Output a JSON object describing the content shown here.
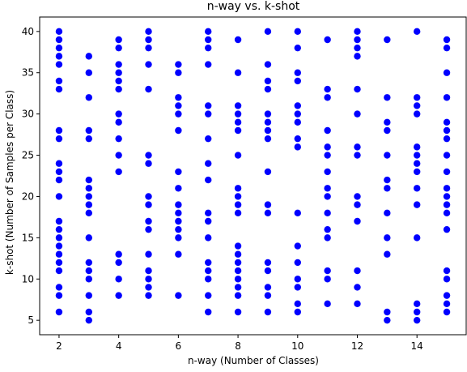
{
  "chart_data": {
    "type": "scatter",
    "title": "n-way vs. k-shot",
    "xlabel": "n-way (Number of Classes)",
    "ylabel": "k-shot (Number of Samples per Class)",
    "xlim": [
      1.35,
      15.65
    ],
    "ylim": [
      3.25,
      41.75
    ],
    "xticks": [
      2,
      4,
      6,
      8,
      10,
      12,
      14
    ],
    "yticks": [
      5,
      10,
      15,
      20,
      25,
      30,
      35,
      40
    ],
    "grid": false,
    "marker_color": "#0000ff",
    "points": [
      [
        2,
        40
      ],
      [
        2,
        39
      ],
      [
        2,
        38
      ],
      [
        2,
        37
      ],
      [
        2,
        36
      ],
      [
        2,
        34
      ],
      [
        2,
        33
      ],
      [
        2,
        28
      ],
      [
        2,
        27
      ],
      [
        2,
        24
      ],
      [
        2,
        23
      ],
      [
        2,
        22
      ],
      [
        2,
        20
      ],
      [
        2,
        17
      ],
      [
        2,
        16
      ],
      [
        2,
        15
      ],
      [
        2,
        14
      ],
      [
        2,
        13
      ],
      [
        2,
        12
      ],
      [
        2,
        11
      ],
      [
        2,
        9
      ],
      [
        2,
        8
      ],
      [
        2,
        6
      ],
      [
        3,
        37
      ],
      [
        3,
        35
      ],
      [
        3,
        32
      ],
      [
        3,
        28
      ],
      [
        3,
        27
      ],
      [
        3,
        22
      ],
      [
        3,
        21
      ],
      [
        3,
        20
      ],
      [
        3,
        19
      ],
      [
        3,
        18
      ],
      [
        3,
        15
      ],
      [
        3,
        12
      ],
      [
        3,
        11
      ],
      [
        3,
        10
      ],
      [
        3,
        8
      ],
      [
        3,
        6
      ],
      [
        3,
        5
      ],
      [
        4,
        39
      ],
      [
        4,
        38
      ],
      [
        4,
        36
      ],
      [
        4,
        35
      ],
      [
        4,
        34
      ],
      [
        4,
        33
      ],
      [
        4,
        30
      ],
      [
        4,
        29
      ],
      [
        4,
        27
      ],
      [
        4,
        25
      ],
      [
        4,
        23
      ],
      [
        4,
        13
      ],
      [
        4,
        12
      ],
      [
        4,
        10
      ],
      [
        4,
        8
      ],
      [
        5,
        40
      ],
      [
        5,
        39
      ],
      [
        5,
        38
      ],
      [
        5,
        36
      ],
      [
        5,
        33
      ],
      [
        5,
        25
      ],
      [
        5,
        24
      ],
      [
        5,
        20
      ],
      [
        5,
        19
      ],
      [
        5,
        17
      ],
      [
        5,
        16
      ],
      [
        5,
        13
      ],
      [
        5,
        11
      ],
      [
        5,
        10
      ],
      [
        5,
        9
      ],
      [
        5,
        8
      ],
      [
        6,
        36
      ],
      [
        6,
        35
      ],
      [
        6,
        32
      ],
      [
        6,
        31
      ],
      [
        6,
        30
      ],
      [
        6,
        28
      ],
      [
        6,
        23
      ],
      [
        6,
        21
      ],
      [
        6,
        19
      ],
      [
        6,
        18
      ],
      [
        6,
        17
      ],
      [
        6,
        16
      ],
      [
        6,
        15
      ],
      [
        6,
        13
      ],
      [
        6,
        8
      ],
      [
        7,
        40
      ],
      [
        7,
        39
      ],
      [
        7,
        38
      ],
      [
        7,
        36
      ],
      [
        7,
        31
      ],
      [
        7,
        30
      ],
      [
        7,
        27
      ],
      [
        7,
        24
      ],
      [
        7,
        22
      ],
      [
        7,
        18
      ],
      [
        7,
        17
      ],
      [
        7,
        15
      ],
      [
        7,
        12
      ],
      [
        7,
        11
      ],
      [
        7,
        10
      ],
      [
        7,
        8
      ],
      [
        7,
        6
      ],
      [
        8,
        39
      ],
      [
        8,
        35
      ],
      [
        8,
        31
      ],
      [
        8,
        30
      ],
      [
        8,
        29
      ],
      [
        8,
        28
      ],
      [
        8,
        25
      ],
      [
        8,
        21
      ],
      [
        8,
        20
      ],
      [
        8,
        19
      ],
      [
        8,
        18
      ],
      [
        8,
        14
      ],
      [
        8,
        13
      ],
      [
        8,
        12
      ],
      [
        8,
        11
      ],
      [
        8,
        10
      ],
      [
        8,
        9
      ],
      [
        8,
        8
      ],
      [
        8,
        6
      ],
      [
        9,
        40
      ],
      [
        9,
        36
      ],
      [
        9,
        34
      ],
      [
        9,
        33
      ],
      [
        9,
        30
      ],
      [
        9,
        29
      ],
      [
        9,
        28
      ],
      [
        9,
        27
      ],
      [
        9,
        23
      ],
      [
        9,
        19
      ],
      [
        9,
        18
      ],
      [
        9,
        12
      ],
      [
        9,
        11
      ],
      [
        9,
        9
      ],
      [
        9,
        8
      ],
      [
        9,
        6
      ],
      [
        10,
        40
      ],
      [
        10,
        38
      ],
      [
        10,
        35
      ],
      [
        10,
        34
      ],
      [
        10,
        31
      ],
      [
        10,
        30
      ],
      [
        10,
        29
      ],
      [
        10,
        27
      ],
      [
        10,
        26
      ],
      [
        10,
        18
      ],
      [
        10,
        14
      ],
      [
        10,
        12
      ],
      [
        10,
        10
      ],
      [
        10,
        9
      ],
      [
        10,
        7
      ],
      [
        10,
        6
      ],
      [
        11,
        39
      ],
      [
        11,
        33
      ],
      [
        11,
        32
      ],
      [
        11,
        28
      ],
      [
        11,
        26
      ],
      [
        11,
        25
      ],
      [
        11,
        23
      ],
      [
        11,
        21
      ],
      [
        11,
        20
      ],
      [
        11,
        18
      ],
      [
        11,
        16
      ],
      [
        11,
        15
      ],
      [
        11,
        11
      ],
      [
        11,
        10
      ],
      [
        11,
        7
      ],
      [
        12,
        40
      ],
      [
        12,
        39
      ],
      [
        12,
        38
      ],
      [
        12,
        37
      ],
      [
        12,
        33
      ],
      [
        12,
        30
      ],
      [
        12,
        26
      ],
      [
        12,
        25
      ],
      [
        12,
        20
      ],
      [
        12,
        19
      ],
      [
        12,
        17
      ],
      [
        12,
        11
      ],
      [
        12,
        9
      ],
      [
        12,
        7
      ],
      [
        13,
        39
      ],
      [
        13,
        32
      ],
      [
        13,
        29
      ],
      [
        13,
        28
      ],
      [
        13,
        25
      ],
      [
        13,
        22
      ],
      [
        13,
        21
      ],
      [
        13,
        18
      ],
      [
        13,
        15
      ],
      [
        13,
        13
      ],
      [
        13,
        6
      ],
      [
        13,
        5
      ],
      [
        14,
        40
      ],
      [
        14,
        32
      ],
      [
        14,
        31
      ],
      [
        14,
        30
      ],
      [
        14,
        26
      ],
      [
        14,
        25
      ],
      [
        14,
        24
      ],
      [
        14,
        23
      ],
      [
        14,
        21
      ],
      [
        14,
        19
      ],
      [
        14,
        15
      ],
      [
        14,
        7
      ],
      [
        14,
        6
      ],
      [
        14,
        5
      ],
      [
        15,
        39
      ],
      [
        15,
        38
      ],
      [
        15,
        35
      ],
      [
        15,
        32
      ],
      [
        15,
        29
      ],
      [
        15,
        28
      ],
      [
        15,
        27
      ],
      [
        15,
        25
      ],
      [
        15,
        23
      ],
      [
        15,
        21
      ],
      [
        15,
        20
      ],
      [
        15,
        19
      ],
      [
        15,
        18
      ],
      [
        15,
        16
      ],
      [
        15,
        11
      ],
      [
        15,
        10
      ],
      [
        15,
        8
      ],
      [
        15,
        7
      ],
      [
        15,
        6
      ]
    ]
  }
}
